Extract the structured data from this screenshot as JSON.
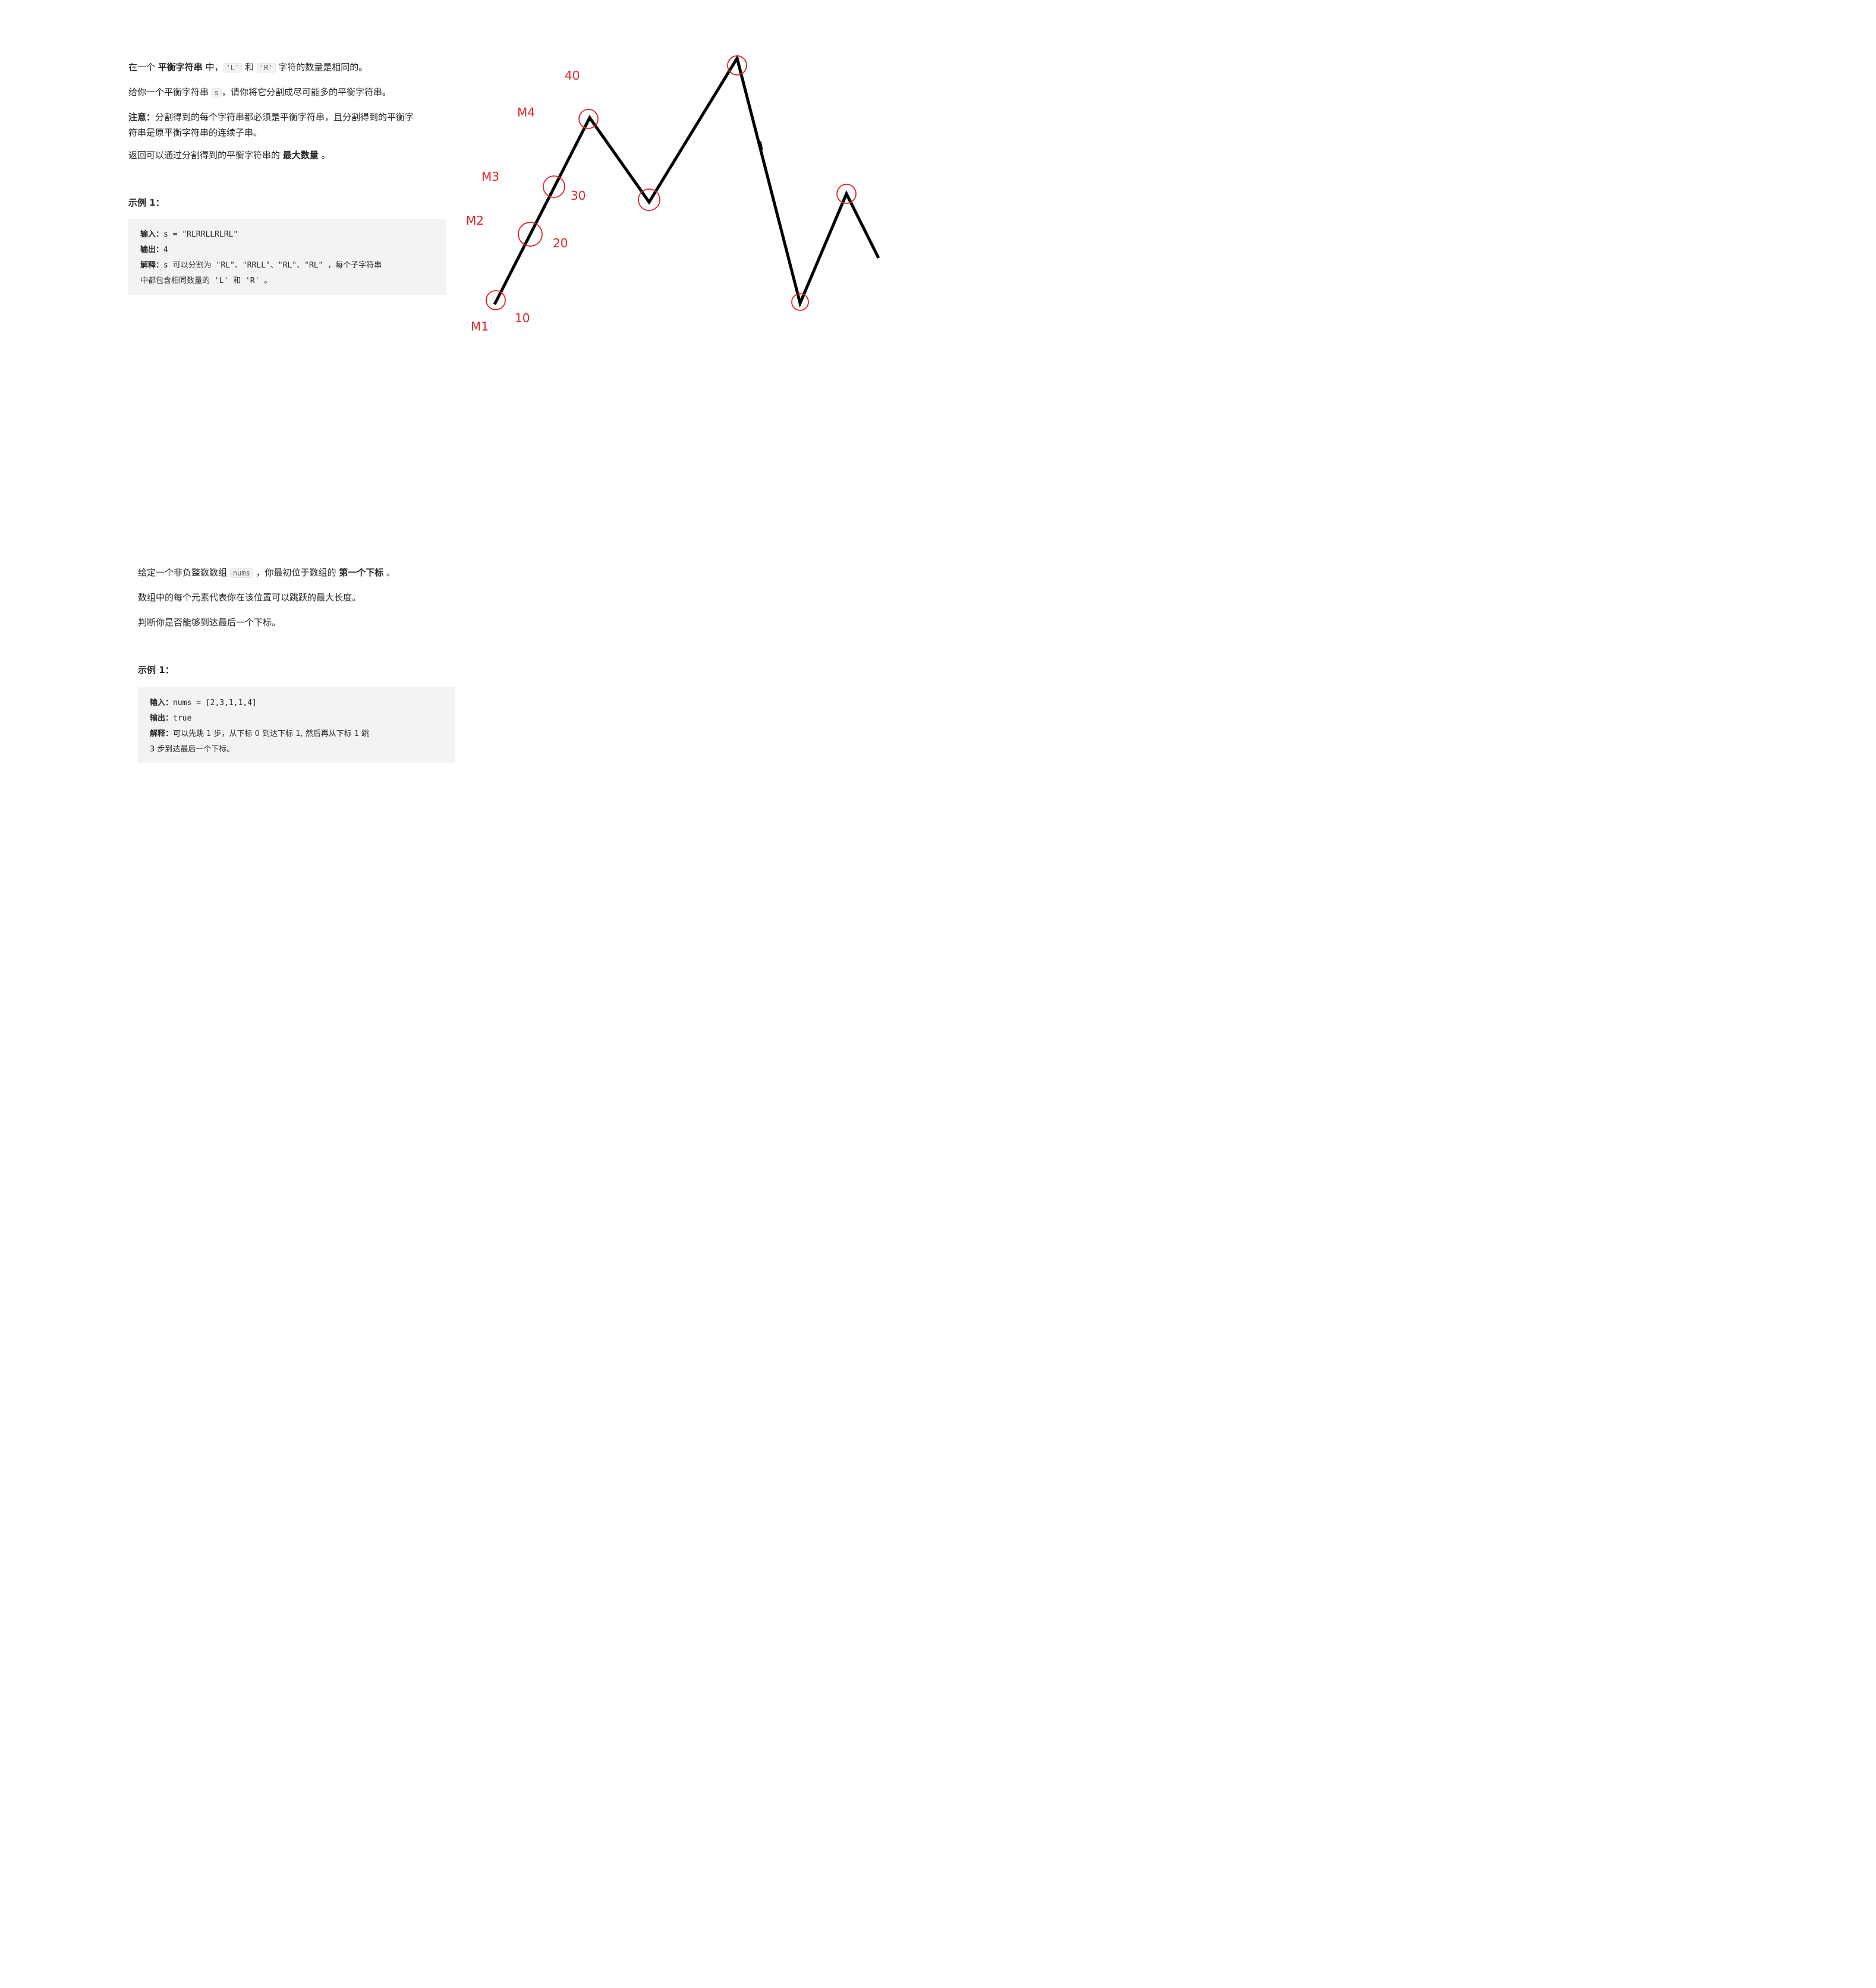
{
  "problem1": {
    "p1_pre": "在一个 ",
    "p1_bold": "平衡字符串",
    "p1_mid1": " 中，",
    "p1_code1": "'L'",
    "p1_mid2": " 和 ",
    "p1_code2": "'R'",
    "p1_post": " 字符的数量是相同的。",
    "p2_pre": "给你一个平衡字符串 ",
    "p2_code": "s",
    "p2_post": "，请你将它分割成尽可能多的平衡字符串。",
    "p3_bold": "注意：",
    "p3_line1": "分割得到的每个字符串都必须是平衡字符串，且分割得到的平衡字",
    "p3_line2": "符串是原平衡字符串的连续子串。",
    "p4_pre": "返回可以通过分割得到的平衡字符串的 ",
    "p4_bold": "最大数量",
    "p4_post": " 。",
    "example_title": "示例 1：",
    "example": {
      "input_label": "输入：",
      "input_value": "s = \"RLRRLLRLRL\"",
      "output_label": "输出：",
      "output_value": "4",
      "explain_label": "解释：",
      "explain_line1": "s 可以分割为 \"RL\"、\"RRLL\"、\"RL\"、\"RL\" ，每个子字符串",
      "explain_line2": "中都包含相同数量的 'L' 和 'R' 。"
    }
  },
  "problem2": {
    "p1_pre": "给定一个非负整数数组 ",
    "p1_code": "nums",
    "p1_mid": " ，你最初位于数组的 ",
    "p1_bold": "第一个下标",
    "p1_post": " 。",
    "p2": "数组中的每个元素代表你在该位置可以跳跃的最大长度。",
    "p3": "判断你是否能够到达最后一个下标。",
    "example_title": "示例 1：",
    "example": {
      "input_label": "输入：",
      "input_value": "nums = [2,3,1,1,4]",
      "output_label": "输出：",
      "output_value": "true",
      "explain_label": "解释：",
      "explain_line1": "可以先跳 1 步，从下标 0 到达下标 1, 然后再从下标 1 跳",
      "explain_line2": "3 步到达最后一个下标。"
    }
  },
  "sketch": {
    "line_color": "#000000",
    "annotation_color": "#e0252c",
    "labels": {
      "m1": "M1",
      "m2": "M2",
      "m3": "M3",
      "m4": "M4",
      "v10": "10",
      "v20": "20",
      "v30": "30",
      "v40": "40"
    }
  }
}
